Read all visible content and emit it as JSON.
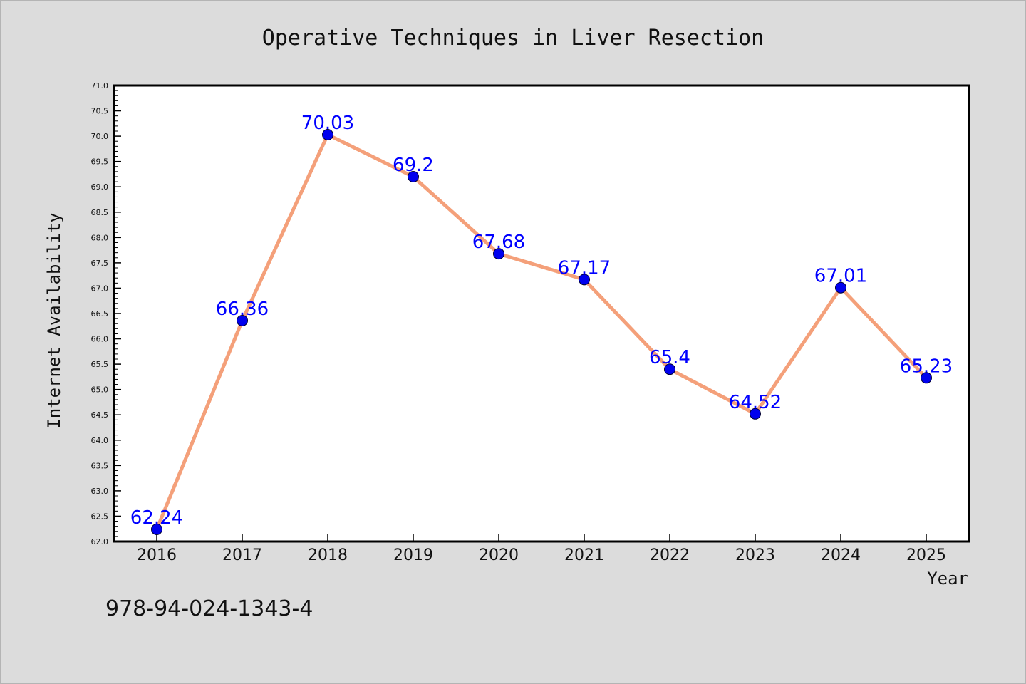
{
  "chart_data": {
    "type": "line",
    "title": "Operative Techniques in Liver Resection",
    "xlabel": "Year",
    "ylabel": "Internet Availability",
    "categories": [
      "2016",
      "2017",
      "2018",
      "2019",
      "2020",
      "2021",
      "2022",
      "2023",
      "2024",
      "2025"
    ],
    "series": [
      {
        "values": [
          62.24,
          66.36,
          70.03,
          69.2,
          67.68,
          67.17,
          65.4,
          64.52,
          67.01,
          65.23
        ],
        "data_labels": [
          "62.24",
          "66.36",
          "70.03",
          "69.2",
          "67.68",
          "67.17",
          "65.4",
          "64.52",
          "67.01",
          "65.23"
        ]
      }
    ],
    "ylim": [
      62.0,
      71.0
    ],
    "y_ticks": [
      "62.0",
      "62.5",
      "63.0",
      "63.5",
      "64.0",
      "64.5",
      "65.0",
      "65.5",
      "66.0",
      "66.5",
      "67.0",
      "67.5",
      "68.0",
      "68.5",
      "69.0",
      "69.5",
      "70.0",
      "70.5",
      "71.0"
    ],
    "grid": false,
    "legend": "none",
    "colors": {
      "line": "#f4a07a",
      "marker": "#0000ee",
      "data_label": "#0000ff",
      "background": "#dcdcdc",
      "plot_background": "#ffffff"
    }
  },
  "footer": {
    "isbn": "978-94-024-1343-4"
  }
}
